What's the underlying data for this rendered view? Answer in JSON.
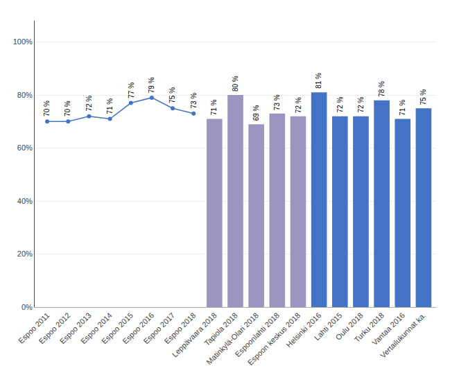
{
  "chart_data": {
    "type": "bar",
    "categories": [
      "Espoo 2011",
      "Espoo 2012",
      "Espoo 2013",
      "Espoo 2014",
      "Espoo 2015",
      "Espoo 2016",
      "Espoo 2017",
      "Espoo 2018",
      "Leppävaara 2018",
      "Tapiola 2018",
      "Matinkylä-Olari 2018",
      "Espoonlahti 2018",
      "Espoon keskus 2018",
      "Helsinki 2016",
      "Lahti 2015",
      "Oulu 2018",
      "Turku 2018",
      "Vantaa 2016",
      "Vertailukunnat ka."
    ],
    "series": [
      {
        "type": "line",
        "color": "#4472C4",
        "marker": "circle",
        "line_style": "solid",
        "values": [
          70,
          70,
          72,
          71,
          77,
          79,
          75,
          73,
          null,
          null,
          null,
          null,
          null,
          null,
          null,
          null,
          null,
          null,
          null
        ],
        "value_labels": [
          "70 %",
          "70 %",
          "72 %",
          "71 %",
          "77 %",
          "79 %",
          "75 %",
          "73 %",
          null,
          null,
          null,
          null,
          null,
          null,
          null,
          null,
          null,
          null,
          null
        ]
      },
      {
        "type": "bar",
        "colors": [
          null,
          null,
          null,
          null,
          null,
          null,
          null,
          null,
          "#9B96C0",
          "#9B96C0",
          "#9B96C0",
          "#9B96C0",
          "#9B96C0",
          "#4472C4",
          "#4472C4",
          "#4472C4",
          "#4472C4",
          "#4472C4",
          "#4472C4"
        ],
        "values": [
          null,
          null,
          null,
          null,
          null,
          null,
          null,
          null,
          71,
          80,
          69,
          73,
          72,
          81,
          72,
          72,
          78,
          71,
          75
        ],
        "value_labels": [
          null,
          null,
          null,
          null,
          null,
          null,
          null,
          null,
          "71 %",
          "80 %",
          "69 %",
          "73 %",
          "72 %",
          "81 %",
          "72 %",
          "72 %",
          "78 %",
          "71 %",
          "75 %"
        ]
      }
    ],
    "ylim": [
      0,
      108
    ],
    "yticks": [
      {
        "value": 0,
        "label": "0%"
      },
      {
        "value": 20,
        "label": "20%"
      },
      {
        "value": 40,
        "label": "40%"
      },
      {
        "value": 60,
        "label": "60%"
      },
      {
        "value": 80,
        "label": "80%"
      },
      {
        "value": 100,
        "label": "100%"
      }
    ],
    "grid": true,
    "data_labels": true
  }
}
